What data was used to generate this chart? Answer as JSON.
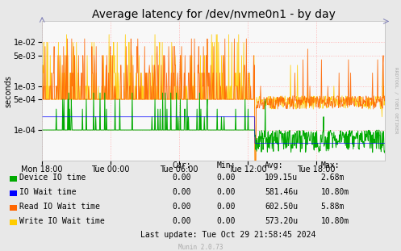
{
  "title": "Average latency for /dev/nvme0n1 - by day",
  "ylabel": "seconds",
  "background_color": "#e8e8e8",
  "plot_background": "#f8f8f8",
  "grid_color": "#ffaaaa",
  "ylim_min": 2e-05,
  "ylim_max": 0.03,
  "x_ticks_labels": [
    "Mon 18:00",
    "Tue 00:00",
    "Tue 06:00",
    "Tue 12:00",
    "Tue 18:00"
  ],
  "yticks": [
    0.0001,
    0.0005,
    0.001,
    0.005,
    0.01
  ],
  "ytick_labels": [
    "1e-04",
    "5e-04",
    "1e-03",
    "5e-03",
    "1e-02"
  ],
  "legend_items": [
    {
      "label": "Device IO time",
      "color": "#00aa00"
    },
    {
      "label": "IO Wait time",
      "color": "#0000ff"
    },
    {
      "label": "Read IO Wait time",
      "color": "#ff6600"
    },
    {
      "label": "Write IO Wait time",
      "color": "#ffcc00"
    }
  ],
  "legend_stats": {
    "headers": [
      "Cur:",
      "Min:",
      "Avg:",
      "Max:"
    ],
    "rows": [
      [
        "0.00",
        "0.00",
        "109.15u",
        "2.68m"
      ],
      [
        "0.00",
        "0.00",
        "581.46u",
        "10.80m"
      ],
      [
        "0.00",
        "0.00",
        "602.50u",
        "5.88m"
      ],
      [
        "0.00",
        "0.00",
        "573.20u",
        "10.80m"
      ]
    ]
  },
  "last_update": "Last update: Tue Oct 29 21:58:45 2024",
  "munin_version": "Munin 2.0.73",
  "rrdtool_label": "RRDTOOL / TOBI OETIKER",
  "title_fontsize": 10,
  "axis_fontsize": 7,
  "legend_fontsize": 7
}
